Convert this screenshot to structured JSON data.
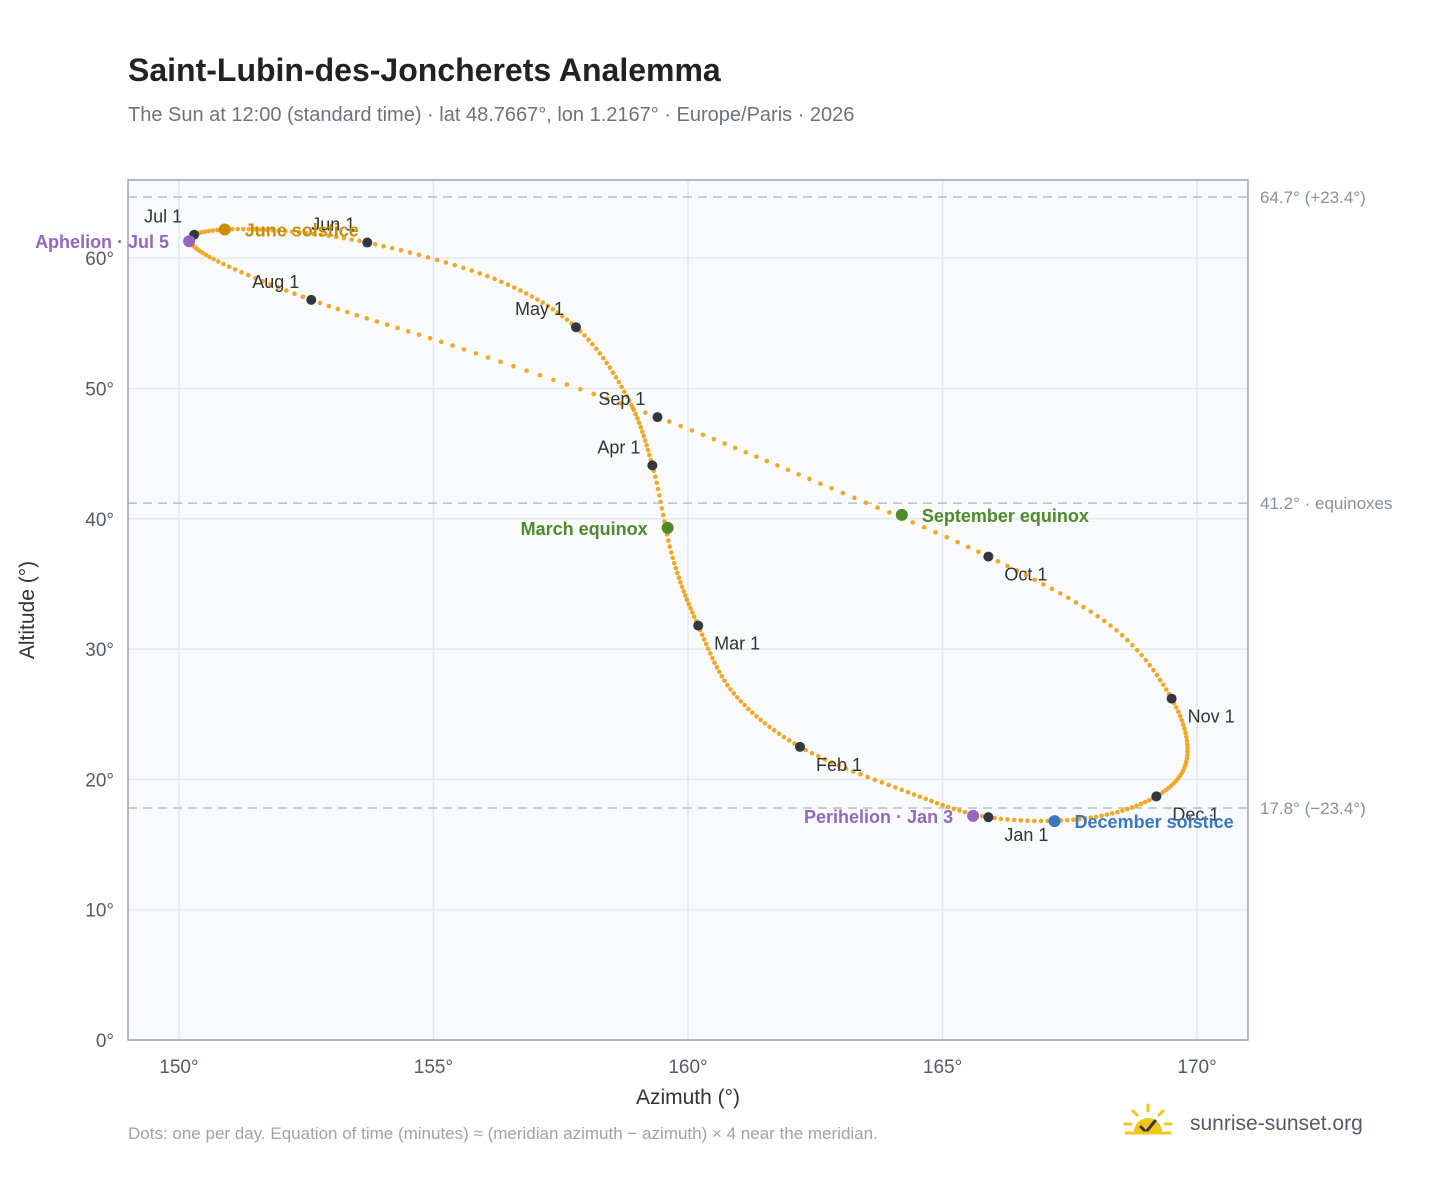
{
  "header": {
    "title": "Saint-Lubin-des-Joncherets Analemma",
    "subtitle": "The Sun at 12:00 (standard time) · lat 48.7667°, lon 1.2167° · Europe/Paris · 2026"
  },
  "footer": {
    "note": "Dots: one per day. Equation of time (minutes) ≈ (meridian azimuth − azimuth) × 4 near the meridian.",
    "brand": "sunrise-sunset.org",
    "brand_icon": "sun-check-icon"
  },
  "colors": {
    "curve": "#f0a828",
    "month_marker": "#333740",
    "june_solstice": "#c8900a",
    "december_solstice": "#3b78c2",
    "equinox": "#4f8a2b",
    "apsis": "#9467bd",
    "plot_bg": "#f8fafc",
    "grid": "#e5e7eb",
    "frame": "#9aa3b2",
    "ref_line": "#b8bec8"
  },
  "chart_data": {
    "type": "scatter",
    "title": "Saint-Lubin-des-Joncherets Analemma",
    "xlabel": "Azimuth (°)",
    "ylabel": "Altitude (°)",
    "xlim": [
      149,
      171
    ],
    "ylim": [
      0,
      66
    ],
    "x_ticks": [
      150,
      155,
      160,
      165,
      170
    ],
    "y_ticks": [
      0,
      10,
      20,
      30,
      40,
      50,
      60
    ],
    "x_tick_labels": [
      "150°",
      "155°",
      "160°",
      "165°",
      "170°"
    ],
    "y_tick_labels": [
      "0°",
      "10°",
      "20°",
      "30°",
      "40°",
      "50°",
      "60°"
    ],
    "grid": true,
    "curve_anchors": [
      {
        "date": "Jan 1",
        "az": 165.9,
        "alt": 17.1
      },
      {
        "date": "Jan 15",
        "az": 164.2,
        "alt": 19.2
      },
      {
        "date": "Feb 1",
        "az": 162.2,
        "alt": 22.5
      },
      {
        "date": "Feb 15",
        "az": 160.9,
        "alt": 26.6
      },
      {
        "date": "Mar 1",
        "az": 160.2,
        "alt": 31.8
      },
      {
        "date": "Mar 15",
        "az": 159.7,
        "alt": 37.0
      },
      {
        "date": "Apr 1",
        "az": 159.3,
        "alt": 44.1
      },
      {
        "date": "Apr 15",
        "az": 158.8,
        "alt": 49.4
      },
      {
        "date": "May 1",
        "az": 157.8,
        "alt": 54.7
      },
      {
        "date": "May 15",
        "az": 156.2,
        "alt": 58.4
      },
      {
        "date": "Jun 1",
        "az": 153.7,
        "alt": 61.2
      },
      {
        "date": "Jun 15",
        "az": 151.6,
        "alt": 62.2
      },
      {
        "date": "Jul 1",
        "az": 150.3,
        "alt": 61.8
      },
      {
        "date": "Jul 15",
        "az": 150.6,
        "alt": 60.1
      },
      {
        "date": "Aug 1",
        "az": 152.6,
        "alt": 56.8
      },
      {
        "date": "Aug 15",
        "az": 155.6,
        "alt": 53.0
      },
      {
        "date": "Sep 1",
        "az": 159.4,
        "alt": 47.8
      },
      {
        "date": "Sep 15",
        "az": 162.6,
        "alt": 42.7
      },
      {
        "date": "Oct 1",
        "az": 165.9,
        "alt": 37.1
      },
      {
        "date": "Oct 15",
        "az": 168.3,
        "alt": 31.8
      },
      {
        "date": "Nov 1",
        "az": 169.5,
        "alt": 26.2
      },
      {
        "date": "Nov 15",
        "az": 169.8,
        "alt": 21.6
      },
      {
        "date": "Dec 1",
        "az": 169.2,
        "alt": 18.7
      },
      {
        "date": "Dec 15",
        "az": 167.8,
        "alt": 17.0
      },
      {
        "date": "Jan 1",
        "az": 165.9,
        "alt": 17.1
      }
    ],
    "month_markers": [
      {
        "label": "Jan 1",
        "az": 165.9,
        "alt": 17.1,
        "label_pos": "below-right"
      },
      {
        "label": "Feb 1",
        "az": 162.2,
        "alt": 22.5,
        "label_pos": "below-right"
      },
      {
        "label": "Mar 1",
        "az": 160.2,
        "alt": 31.8,
        "label_pos": "below-right"
      },
      {
        "label": "Apr 1",
        "az": 159.3,
        "alt": 44.1,
        "label_pos": "above-left"
      },
      {
        "label": "May 1",
        "az": 157.8,
        "alt": 54.7,
        "label_pos": "above-left"
      },
      {
        "label": "Jun 1",
        "az": 153.7,
        "alt": 61.2,
        "label_pos": "above-left"
      },
      {
        "label": "Jul 1",
        "az": 150.3,
        "alt": 61.8,
        "label_pos": "above-left"
      },
      {
        "label": "Aug 1",
        "az": 152.6,
        "alt": 56.8,
        "label_pos": "above-left"
      },
      {
        "label": "Sep 1",
        "az": 159.4,
        "alt": 47.8,
        "label_pos": "above-left"
      },
      {
        "label": "Oct 1",
        "az": 165.9,
        "alt": 37.1,
        "label_pos": "below-right"
      },
      {
        "label": "Nov 1",
        "az": 169.5,
        "alt": 26.2,
        "label_pos": "below-right"
      },
      {
        "label": "Dec 1",
        "az": 169.2,
        "alt": 18.7,
        "label_pos": "below-right"
      }
    ],
    "events": [
      {
        "label": "June solstice",
        "az": 150.9,
        "alt": 62.2,
        "color": "#c8900a",
        "label_side": "right"
      },
      {
        "label": "December solstice",
        "az": 167.2,
        "alt": 16.8,
        "color": "#3b78c2",
        "label_side": "right"
      },
      {
        "label": "March equinox",
        "az": 159.6,
        "alt": 39.3,
        "color": "#4f8a2b",
        "label_side": "left"
      },
      {
        "label": "September equinox",
        "az": 164.2,
        "alt": 40.3,
        "color": "#4f8a2b",
        "label_side": "right"
      },
      {
        "label": "Aphelion · Jul 5",
        "az": 150.2,
        "alt": 61.3,
        "color": "#9467bd",
        "label_side": "left"
      },
      {
        "label": "Perihelion · Jan 3",
        "az": 165.6,
        "alt": 17.2,
        "color": "#9467bd",
        "label_side": "left"
      }
    ],
    "reference_lines": [
      {
        "alt": 64.7,
        "label": "64.7° (+23.4°)"
      },
      {
        "alt": 41.2,
        "label": "41.2° · equinoxes"
      },
      {
        "alt": 17.8,
        "label": "17.8° (−23.4°)"
      }
    ]
  }
}
